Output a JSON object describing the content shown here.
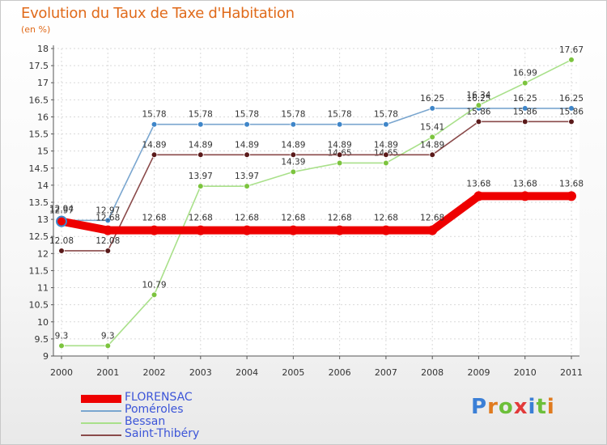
{
  "title": "Evolution du Taux de Taxe d'Habitation",
  "subtitle": "(en %)",
  "logo": {
    "letters": [
      "P",
      "r",
      "o",
      "x",
      "i",
      "t",
      "i"
    ],
    "colors": [
      "#3b7fd6",
      "#e07b1f",
      "#6cbf3a",
      "#e23a3a",
      "#3b7fd6",
      "#6cbf3a",
      "#e07b1f"
    ]
  },
  "chart_data": {
    "type": "line",
    "title": "Evolution du Taux de Taxe d'Habitation",
    "ylabel": "(en %)",
    "xlabel": "",
    "ylim": [
      9,
      18
    ],
    "yticks": [
      "9",
      "9.5",
      "10",
      "10.5",
      "11",
      "11.5",
      "12",
      "12.5",
      "13",
      "13.5",
      "14",
      "14.5",
      "15",
      "15.5",
      "16",
      "16.5",
      "17",
      "17.5",
      "18"
    ],
    "categories": [
      "2000",
      "2001",
      "2002",
      "2003",
      "2004",
      "2005",
      "2006",
      "2007",
      "2008",
      "2009",
      "2010",
      "2011"
    ],
    "series": [
      {
        "name": "Poméroles",
        "color": "#7aa6cf",
        "marker": "#3f86c9",
        "values": [
          12.97,
          12.97,
          15.78,
          15.78,
          15.78,
          15.78,
          15.78,
          15.78,
          16.25,
          16.25,
          16.25,
          16.25
        ],
        "labels": [
          "12.97",
          "12.97",
          "15.78",
          "15.78",
          "15.78",
          "15.78",
          "15.78",
          "15.78",
          "16.25",
          "16.25",
          "16.25",
          "16.25"
        ]
      },
      {
        "name": "Bessan",
        "color": "#a9e08a",
        "marker": "#7cc43e",
        "values": [
          9.3,
          9.3,
          10.79,
          13.97,
          13.97,
          14.39,
          14.65,
          14.65,
          15.41,
          16.34,
          16.99,
          17.67
        ],
        "labels": [
          "9.3",
          "9.3",
          "10.79",
          "13.97",
          "13.97",
          "14.39",
          "14.65",
          "14.65",
          "15.41",
          "16.34",
          "16.99",
          "17.67"
        ]
      },
      {
        "name": "Saint-Thibéry",
        "color": "#8a4a4a",
        "marker": "#5a1a1a",
        "values": [
          12.08,
          12.08,
          14.89,
          14.89,
          14.89,
          14.89,
          14.89,
          14.89,
          14.89,
          15.86,
          15.86,
          15.86
        ],
        "labels": [
          "12.08",
          "12.08",
          "14.89",
          "14.89",
          "14.89",
          "14.89",
          "14.89",
          "14.89",
          "14.89",
          "15.86",
          "15.86",
          "15.86"
        ]
      },
      {
        "name": "FLORENSAC",
        "color": "#ee0000",
        "marker": "#ee0000",
        "values": [
          12.94,
          12.68,
          12.68,
          12.68,
          12.68,
          12.68,
          12.68,
          12.68,
          12.68,
          13.68,
          13.68,
          13.68
        ],
        "labels": [
          "12.94",
          "12.68",
          "12.68",
          "12.68",
          "12.68",
          "12.68",
          "12.68",
          "12.68",
          "12.68",
          "13.68",
          "13.68",
          "13.68"
        ]
      }
    ],
    "legend": [
      {
        "name": "FLORENSAC",
        "color": "#ee0000",
        "weight": "thick"
      },
      {
        "name": "Poméroles",
        "color": "#7aa6cf",
        "weight": "thin"
      },
      {
        "name": "Bessan",
        "color": "#a9e08a",
        "weight": "thin"
      },
      {
        "name": "Saint-Thibéry",
        "color": "#8a4a4a",
        "weight": "thin"
      }
    ]
  }
}
